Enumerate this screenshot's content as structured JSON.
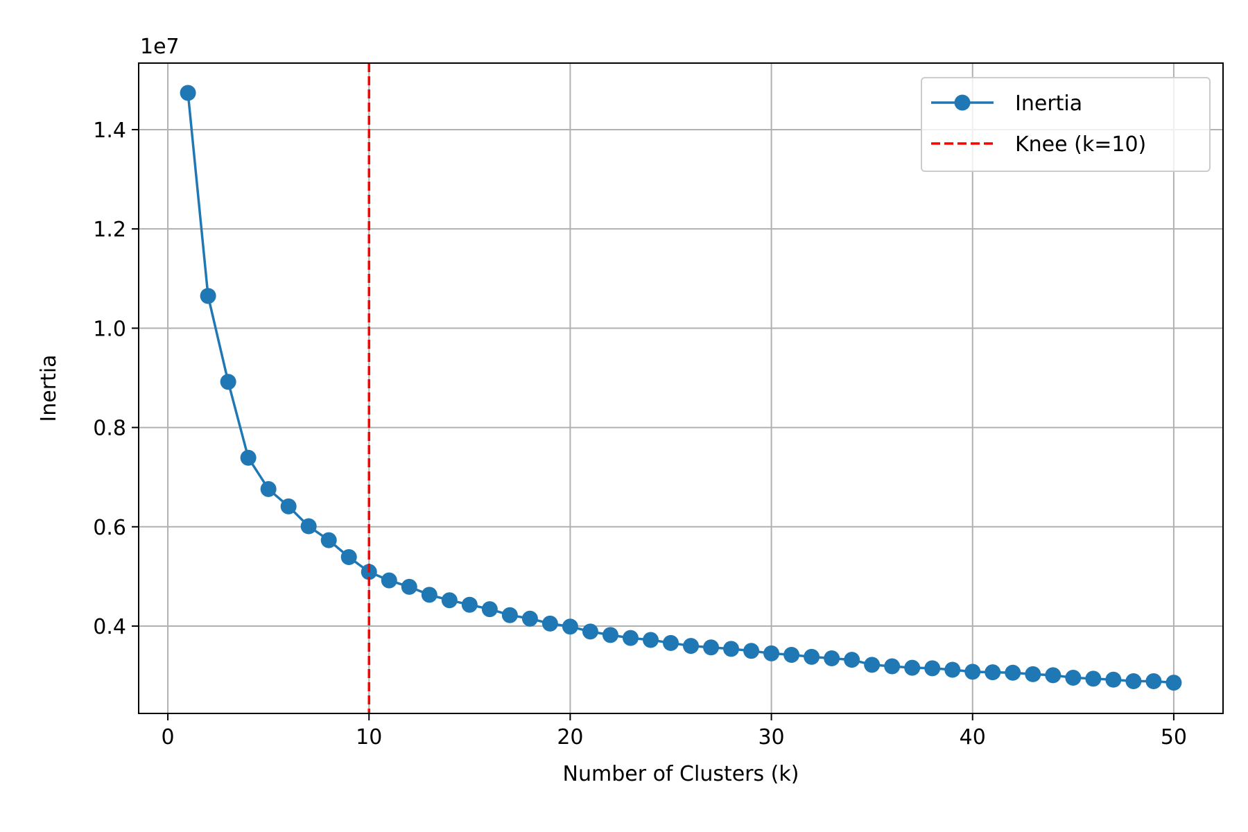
{
  "chart_data": {
    "type": "line",
    "xlabel": "Number of Clusters (k)",
    "ylabel": "Inertia",
    "y_offset_label": "1e7",
    "xlim": [
      -1.45,
      52.45
    ],
    "ylim": [
      2.24,
      15.34
    ],
    "x_ticks": [
      0,
      10,
      20,
      30,
      40,
      50
    ],
    "x_tick_labels": [
      "0",
      "10",
      "20",
      "30",
      "40",
      "50"
    ],
    "y_ticks": [
      4,
      6,
      8,
      10,
      12,
      14
    ],
    "y_tick_labels": [
      "0.4",
      "0.6",
      "0.8",
      "1.0",
      "1.2",
      "1.4"
    ],
    "grid": true,
    "legend_position": "upper right",
    "series": [
      {
        "name": "Inertia",
        "color": "#1f77b4",
        "marker": "circle",
        "x": [
          1,
          2,
          3,
          4,
          5,
          6,
          7,
          8,
          9,
          10,
          11,
          12,
          13,
          14,
          15,
          16,
          17,
          18,
          19,
          20,
          21,
          22,
          23,
          24,
          25,
          26,
          27,
          28,
          29,
          30,
          31,
          32,
          33,
          34,
          35,
          36,
          37,
          38,
          39,
          40,
          41,
          42,
          43,
          44,
          45,
          46,
          47,
          48,
          49,
          50
        ],
        "y": [
          14.74,
          10.65,
          8.92,
          7.39,
          6.76,
          6.41,
          6.01,
          5.73,
          5.39,
          5.09,
          4.92,
          4.79,
          4.63,
          4.52,
          4.43,
          4.34,
          4.22,
          4.15,
          4.05,
          3.99,
          3.89,
          3.82,
          3.76,
          3.72,
          3.66,
          3.6,
          3.57,
          3.54,
          3.5,
          3.45,
          3.42,
          3.38,
          3.35,
          3.32,
          3.22,
          3.19,
          3.16,
          3.15,
          3.12,
          3.08,
          3.07,
          3.06,
          3.03,
          3.01,
          2.96,
          2.94,
          2.92,
          2.89,
          2.89,
          2.86
        ]
      }
    ],
    "vline": {
      "name": "Knee (k=10)",
      "x": 10,
      "color": "#ff0000",
      "style": "dashed"
    }
  }
}
